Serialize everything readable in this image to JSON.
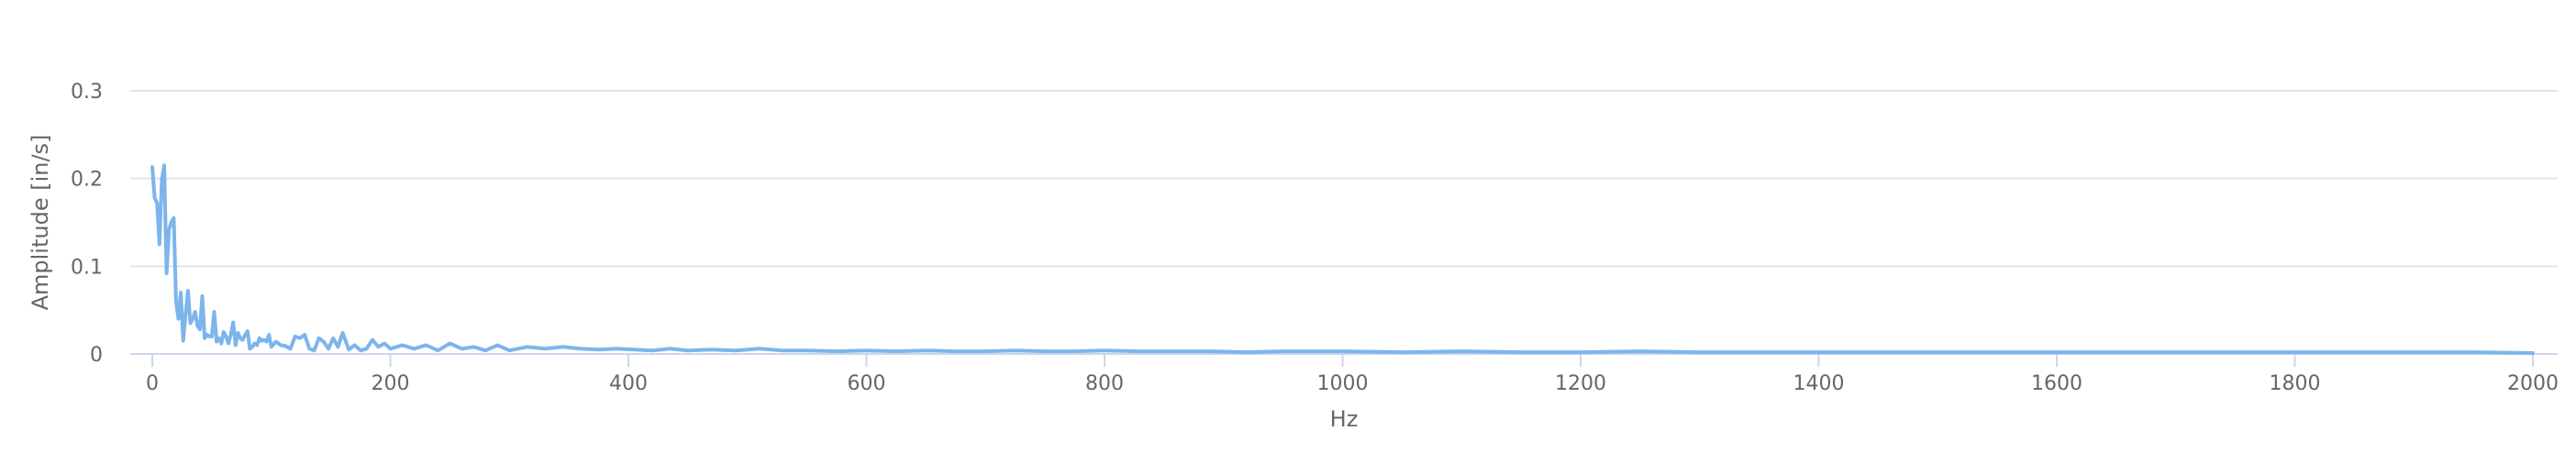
{
  "chart_data": {
    "type": "line",
    "title": "",
    "xlabel": "Hz",
    "ylabel": "Amplitude [in/s]",
    "xlim": [
      0,
      2000
    ],
    "ylim": [
      0,
      0.3
    ],
    "x_ticks": [
      0,
      200,
      400,
      600,
      800,
      1000,
      1200,
      1400,
      1600,
      1800,
      2000
    ],
    "y_ticks": [
      {
        "value": 0,
        "label": "0"
      },
      {
        "value": 0.1,
        "label": "0.1"
      },
      {
        "value": 0.2,
        "label": "0.2"
      },
      {
        "value": 0.3,
        "label": "0.3"
      }
    ],
    "grid": "horizontal",
    "legend": "none",
    "series": [
      {
        "color": "#7cb5ec",
        "x": [
          0,
          2,
          4,
          6,
          8,
          10,
          12,
          14,
          16,
          18,
          20,
          22,
          24,
          26,
          28,
          30,
          32,
          34,
          36,
          38,
          40,
          42,
          44,
          46,
          48,
          50,
          52,
          54,
          56,
          58,
          60,
          62,
          64,
          66,
          68,
          70,
          72,
          74,
          76,
          78,
          80,
          82,
          84,
          86,
          88,
          90,
          92,
          94,
          96,
          98,
          100,
          104,
          108,
          112,
          116,
          120,
          124,
          128,
          132,
          136,
          140,
          144,
          148,
          152,
          156,
          160,
          165,
          170,
          175,
          180,
          185,
          190,
          195,
          200,
          210,
          220,
          230,
          240,
          250,
          260,
          270,
          280,
          290,
          300,
          315,
          330,
          345,
          360,
          375,
          390,
          405,
          420,
          435,
          450,
          470,
          490,
          510,
          530,
          550,
          575,
          600,
          625,
          650,
          675,
          700,
          725,
          750,
          775,
          800,
          830,
          860,
          890,
          920,
          950,
          1000,
          1050,
          1100,
          1150,
          1200,
          1250,
          1300,
          1350,
          1400,
          1450,
          1500,
          1550,
          1600,
          1650,
          1700,
          1750,
          1800,
          1850,
          1900,
          1950,
          2000
        ],
        "y": [
          0.213,
          0.178,
          0.172,
          0.125,
          0.198,
          0.215,
          0.092,
          0.142,
          0.15,
          0.155,
          0.06,
          0.04,
          0.07,
          0.015,
          0.045,
          0.072,
          0.035,
          0.04,
          0.048,
          0.032,
          0.028,
          0.066,
          0.018,
          0.022,
          0.02,
          0.02,
          0.048,
          0.014,
          0.018,
          0.012,
          0.025,
          0.02,
          0.012,
          0.022,
          0.036,
          0.01,
          0.024,
          0.018,
          0.016,
          0.022,
          0.026,
          0.006,
          0.008,
          0.012,
          0.01,
          0.018,
          0.015,
          0.016,
          0.014,
          0.022,
          0.008,
          0.014,
          0.01,
          0.009,
          0.006,
          0.02,
          0.018,
          0.022,
          0.006,
          0.004,
          0.018,
          0.014,
          0.006,
          0.018,
          0.008,
          0.024,
          0.005,
          0.01,
          0.004,
          0.006,
          0.016,
          0.008,
          0.012,
          0.006,
          0.01,
          0.006,
          0.01,
          0.004,
          0.012,
          0.006,
          0.008,
          0.004,
          0.01,
          0.004,
          0.008,
          0.006,
          0.008,
          0.006,
          0.005,
          0.006,
          0.005,
          0.004,
          0.006,
          0.004,
          0.005,
          0.004,
          0.006,
          0.004,
          0.004,
          0.003,
          0.004,
          0.003,
          0.004,
          0.003,
          0.003,
          0.004,
          0.003,
          0.003,
          0.004,
          0.003,
          0.003,
          0.003,
          0.002,
          0.003,
          0.003,
          0.002,
          0.003,
          0.002,
          0.002,
          0.003,
          0.002,
          0.002,
          0.002,
          0.002,
          0.002,
          0.002,
          0.002,
          0.002,
          0.002,
          0.002,
          0.002,
          0.002,
          0.002,
          0.002,
          0.001
        ]
      }
    ]
  }
}
